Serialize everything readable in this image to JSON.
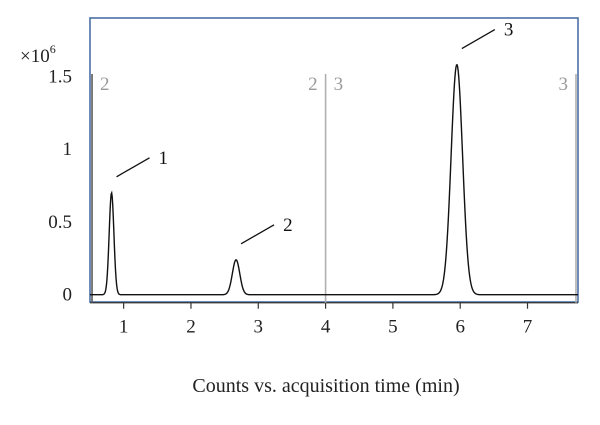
{
  "chart_data": {
    "type": "line",
    "xlabel": "Counts vs. acquisition time (min)",
    "y_multiplier": {
      "base": "×10",
      "exp": "6"
    },
    "xlim": [
      0.5,
      7.75
    ],
    "ylim": [
      -0.05,
      1.9
    ],
    "x_ticks": [
      1,
      2,
      3,
      4,
      5,
      6,
      7
    ],
    "y_ticks": [
      {
        "value": 0,
        "label": "0"
      },
      {
        "value": 0.5,
        "label": "0.5"
      },
      {
        "value": 1,
        "label": "1"
      },
      {
        "value": 1.5,
        "label": "1.5"
      }
    ],
    "peaks": [
      {
        "label": "1",
        "x": 0.82,
        "height": 0.7,
        "width": 0.035
      },
      {
        "label": "2",
        "x": 2.67,
        "height": 0.24,
        "width": 0.055
      },
      {
        "label": "3",
        "x": 5.95,
        "height": 1.58,
        "width": 0.085
      }
    ],
    "segment_markers": [
      {
        "x": 0.53,
        "color": "#5a5a5a",
        "labels": [
          {
            "text": "2",
            "side": "right"
          }
        ]
      },
      {
        "x": 4.0,
        "color": "#b0b0b0",
        "labels": [
          {
            "text": "2",
            "side": "left"
          },
          {
            "text": "3",
            "side": "right"
          }
        ]
      },
      {
        "x": 7.72,
        "color": "#b0b0b0",
        "labels": [
          {
            "text": "3",
            "side": "left"
          }
        ]
      }
    ],
    "frame_color": "#4a6fa5",
    "line_color": "#111111",
    "grid": false
  }
}
